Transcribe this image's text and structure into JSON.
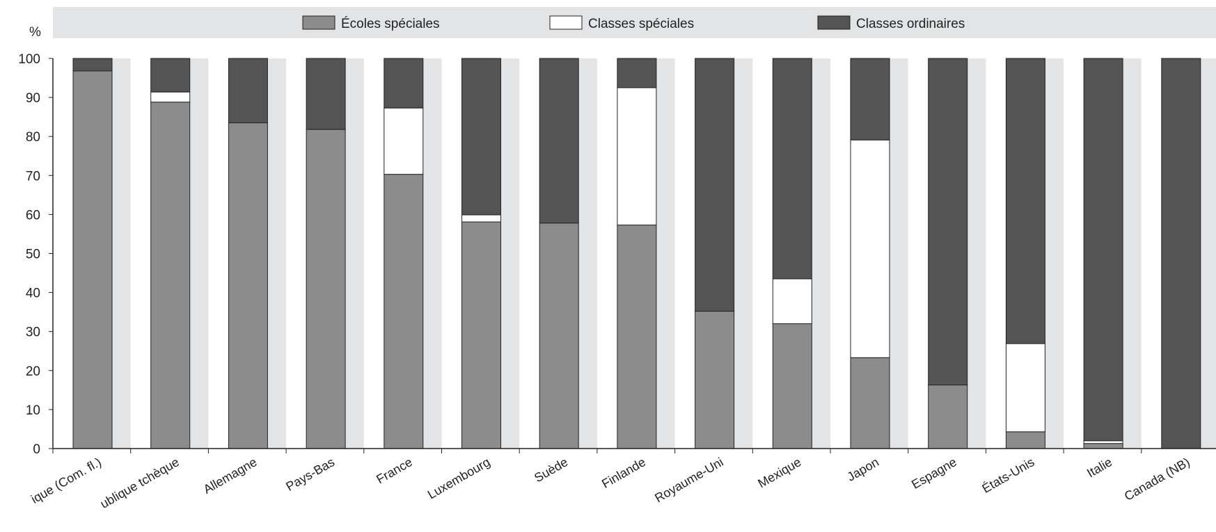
{
  "chart_data": {
    "type": "bar",
    "stacked": true,
    "y_unit_label": "%",
    "ylim": [
      0,
      100
    ],
    "yticks": [
      0,
      10,
      20,
      30,
      40,
      50,
      60,
      70,
      80,
      90,
      100
    ],
    "categories": [
      "ique (Com. fl.)",
      "ublique tchèque",
      "Allemagne",
      "Pays-Bas",
      "France",
      "Luxembourg",
      "Suède",
      "Finlande",
      "Royaume-Uni",
      "Mexique",
      "Japon",
      "Espagne",
      "États-Unis",
      "Italie",
      "Canada (NB)"
    ],
    "series": [
      {
        "name": "Écoles spéciales",
        "color": "#8c8c8c",
        "values": [
          96.8,
          88.8,
          83.5,
          81.8,
          70.3,
          58.1,
          57.8,
          57.3,
          35.2,
          32.0,
          23.3,
          16.3,
          4.3,
          1.3,
          0
        ]
      },
      {
        "name": "Classes spéciales",
        "color": "#ffffff",
        "values": [
          0,
          2.6,
          0,
          0,
          17.0,
          1.8,
          0,
          35.2,
          0,
          11.5,
          55.8,
          0,
          22.6,
          0.7,
          0
        ]
      },
      {
        "name": "Classes ordinaires",
        "color": "#545454",
        "values": [
          3.2,
          8.6,
          16.5,
          18.2,
          12.7,
          40.1,
          42.2,
          7.5,
          64.8,
          56.5,
          20.9,
          83.7,
          73.1,
          98.0,
          100
        ]
      }
    ],
    "legend_position": "top",
    "grid": "vertical-bands"
  }
}
